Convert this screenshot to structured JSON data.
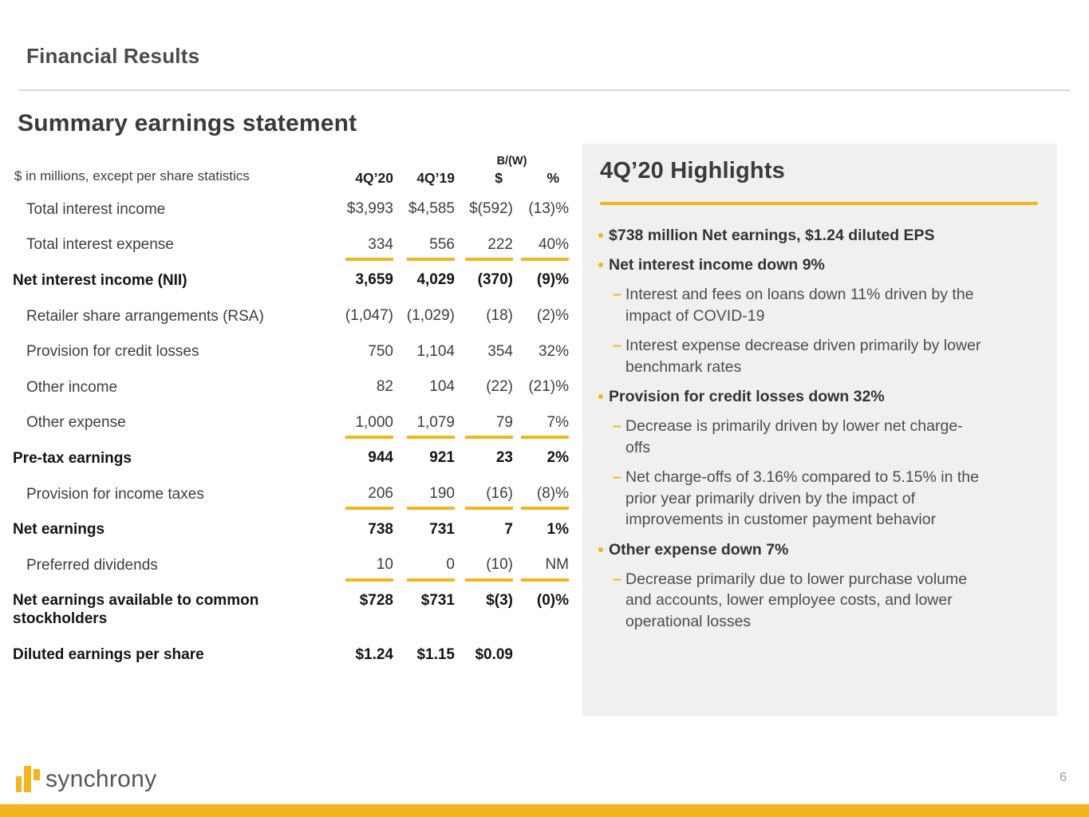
{
  "colors": {
    "gold": "#F2B51D",
    "panel_bg": "#F0F0EF"
  },
  "header": {
    "kicker": "Financial Results",
    "title": "Summary earnings statement"
  },
  "table": {
    "unit_note": "$ in millions, except per share statistics",
    "col_headers": {
      "q20": "4Q’20",
      "q19": "4Q’19",
      "bw": "B/(W)",
      "dollar": "$",
      "pct": "%"
    },
    "rows": [
      {
        "label": "Total interest income",
        "q20": "$3,993",
        "q19": "$4,585",
        "dollar": "$(592)",
        "pct": "(13)%",
        "bold": false,
        "underline": false,
        "twoline": false
      },
      {
        "label": "Total interest expense",
        "q20": "334",
        "q19": "556",
        "dollar": "222",
        "pct": "40%",
        "bold": false,
        "underline": true,
        "twoline": false
      },
      {
        "label": "Net interest income (NII)",
        "q20": "3,659",
        "q19": "4,029",
        "dollar": "(370)",
        "pct": "(9)%",
        "bold": true,
        "underline": false,
        "twoline": false
      },
      {
        "label": "Retailer share arrangements (RSA)",
        "q20": "(1,047)",
        "q19": "(1,029)",
        "dollar": "(18)",
        "pct": "(2)%",
        "bold": false,
        "underline": false,
        "twoline": false
      },
      {
        "label": "Provision for credit losses",
        "q20": "750",
        "q19": "1,104",
        "dollar": "354",
        "pct": "32%",
        "bold": false,
        "underline": false,
        "twoline": false
      },
      {
        "label": "Other income",
        "q20": "82",
        "q19": "104",
        "dollar": "(22)",
        "pct": "(21)%",
        "bold": false,
        "underline": false,
        "twoline": false
      },
      {
        "label": "Other expense",
        "q20": "1,000",
        "q19": "1,079",
        "dollar": "79",
        "pct": "7%",
        "bold": false,
        "underline": true,
        "twoline": false
      },
      {
        "label": "Pre-tax earnings",
        "q20": "944",
        "q19": "921",
        "dollar": "23",
        "pct": "2%",
        "bold": true,
        "underline": false,
        "twoline": false
      },
      {
        "label": "Provision for income taxes",
        "q20": "206",
        "q19": "190",
        "dollar": "(16)",
        "pct": "(8)%",
        "bold": false,
        "underline": true,
        "twoline": false
      },
      {
        "label": "Net earnings",
        "q20": "738",
        "q19": "731",
        "dollar": "7",
        "pct": "1%",
        "bold": true,
        "underline": false,
        "twoline": false
      },
      {
        "label": "Preferred dividends",
        "q20": "10",
        "q19": "0",
        "dollar": "(10)",
        "pct": "NM",
        "bold": false,
        "underline": true,
        "twoline": false
      },
      {
        "label": "Net earnings available to common\nstockholders",
        "q20": "$728",
        "q19": "$731",
        "dollar": "$(3)",
        "pct": "(0)%",
        "bold": true,
        "underline": false,
        "twoline": true
      },
      {
        "label": "Diluted earnings per share",
        "q20": "$1.24",
        "q19": "$1.15",
        "dollar": "$0.09",
        "pct": "",
        "bold": true,
        "underline": false,
        "twoline": false
      }
    ]
  },
  "highlights": {
    "title": "4Q’20 Highlights",
    "items": [
      {
        "text": "$738 million Net earnings, $1.24 diluted EPS",
        "subs": []
      },
      {
        "text": "Net interest income down 9%",
        "subs": [
          "Interest and fees on loans down 11% driven by the\nimpact of COVID-19",
          "Interest expense decrease driven primarily by lower\nbenchmark rates"
        ]
      },
      {
        "text": "Provision for credit losses down 32%",
        "subs": [
          "Decrease is primarily driven by lower net charge-\noffs",
          "Net charge-offs of 3.16% compared to 5.15% in the\nprior year primarily driven by the impact of\nimprovements in customer payment behavior"
        ]
      },
      {
        "text": "Other expense down 7%",
        "subs": [
          "Decrease primarily due to lower purchase volume\nand accounts, lower employee costs, and lower\noperational losses"
        ]
      }
    ]
  },
  "footer": {
    "logo_text": "synchrony",
    "page_number": "6"
  }
}
